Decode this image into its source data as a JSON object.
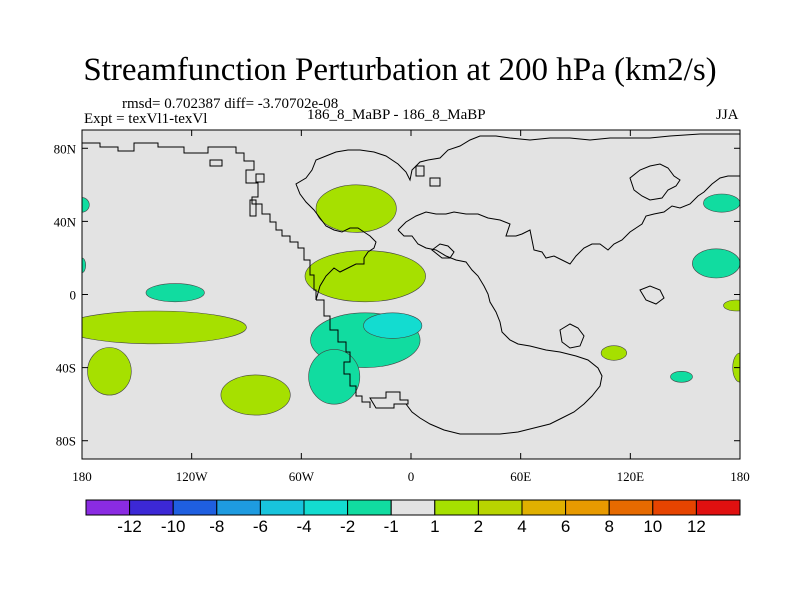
{
  "chart_data": {
    "type": "heatmap",
    "title": "Streamfunction Perturbation at 200 hPa (km2/s)",
    "stats_text": "rmsd= 0.702387 diff= -3.70702e-08",
    "experiment_text": "Expt = texVl1-texVl",
    "case_text": "186_8_MaBP - 186_8_MaBP",
    "season_text": "JJA",
    "xlim": [
      -180,
      180
    ],
    "ylim": [
      -90,
      90
    ],
    "x_ticks": [
      {
        "value": -180,
        "label": "180"
      },
      {
        "value": -120,
        "label": "120W"
      },
      {
        "value": -60,
        "label": "60W"
      },
      {
        "value": 0,
        "label": "0"
      },
      {
        "value": 60,
        "label": "60E"
      },
      {
        "value": 120,
        "label": "120E"
      },
      {
        "value": 180,
        "label": "180"
      }
    ],
    "y_ticks": [
      {
        "value": 80,
        "label": "80N"
      },
      {
        "value": 40,
        "label": "40N"
      },
      {
        "value": 0,
        "label": "0"
      },
      {
        "value": -40,
        "label": "40S"
      },
      {
        "value": -80,
        "label": "80S"
      }
    ],
    "colorbar": {
      "colors": [
        "#8a2be2",
        "#3c28d6",
        "#1f5fe0",
        "#1e9be0",
        "#18c4dc",
        "#13dcd0",
        "#11dca0",
        "#e3e3e3",
        "#a6e000",
        "#b8d400",
        "#e0b000",
        "#e89a00",
        "#e66a00",
        "#e64400",
        "#e01010"
      ],
      "labels": [
        "-12",
        "-10",
        "-8",
        "-6",
        "-4",
        "-2",
        "-1",
        "1",
        "2",
        "4",
        "6",
        "8",
        "10",
        "12"
      ]
    },
    "regions": [
      {
        "level": 2,
        "color": "#a6e000",
        "desc": "N Atlantic high",
        "lon": -30,
        "lat": 47,
        "rx": 22,
        "ry": 13
      },
      {
        "level": 2,
        "color": "#a6e000",
        "desc": "Tropical Atlantic ridge",
        "lon": -25,
        "lat": 10,
        "rx": 33,
        "ry": 14
      },
      {
        "level": 2,
        "color": "#a6e000",
        "desc": "Tropical Pacific band",
        "lon": -140,
        "lat": -18,
        "rx": 50,
        "ry": 9
      },
      {
        "level": 2,
        "color": "#a6e000",
        "desc": "S Pacific west",
        "lon": -165,
        "lat": -42,
        "rx": 12,
        "ry": 13
      },
      {
        "level": 2,
        "color": "#a6e000",
        "desc": "S Pacific east",
        "lon": -85,
        "lat": -55,
        "rx": 19,
        "ry": 11
      },
      {
        "level": 2,
        "color": "#a6e000",
        "desc": "Indian Ocean small",
        "lon": 111,
        "lat": -32,
        "rx": 7,
        "ry": 4
      },
      {
        "level": 2,
        "color": "#a6e000",
        "desc": "Dateline NH edge",
        "lon": 178,
        "lat": -6,
        "rx": 7,
        "ry": 3
      },
      {
        "level": 2,
        "color": "#a6e000",
        "desc": "Dateline SH edge",
        "lon": 180,
        "lat": -40,
        "rx": 4,
        "ry": 8
      },
      {
        "level": -1,
        "color": "#11dca0",
        "desc": "Eastern Pacific trough",
        "lon": -129,
        "lat": 1,
        "rx": 16,
        "ry": 5
      },
      {
        "level": -1,
        "color": "#11dca0",
        "desc": "S Atlantic trough",
        "lon": -25,
        "lat": -25,
        "rx": 30,
        "ry": 15
      },
      {
        "level": -1,
        "color": "#11dca0",
        "desc": "S America tail",
        "lon": -42,
        "lat": -45,
        "rx": 14,
        "ry": 15
      },
      {
        "level": -1,
        "color": "#11dca0",
        "desc": "W Pacific NH",
        "lon": 167,
        "lat": 17,
        "rx": 13,
        "ry": 8
      },
      {
        "level": -1,
        "color": "#11dca0",
        "desc": "N Pacific edge",
        "lon": 170,
        "lat": 50,
        "rx": 10,
        "ry": 5
      },
      {
        "level": -1,
        "color": "#11dca0",
        "desc": "W edge NH",
        "lon": -180,
        "lat": 49,
        "rx": 4,
        "ry": 4
      },
      {
        "level": -1,
        "color": "#11dca0",
        "desc": "W edge tropics",
        "lon": -180,
        "lat": 16,
        "rx": 2,
        "ry": 4
      },
      {
        "level": -1,
        "color": "#11dca0",
        "desc": "SE Pacific small",
        "lon": 148,
        "lat": -45,
        "rx": 6,
        "ry": 3
      },
      {
        "level": -2,
        "color": "#13dcd0",
        "desc": "S Atlantic core",
        "lon": -10,
        "lat": -17,
        "rx": 16,
        "ry": 7
      }
    ]
  }
}
